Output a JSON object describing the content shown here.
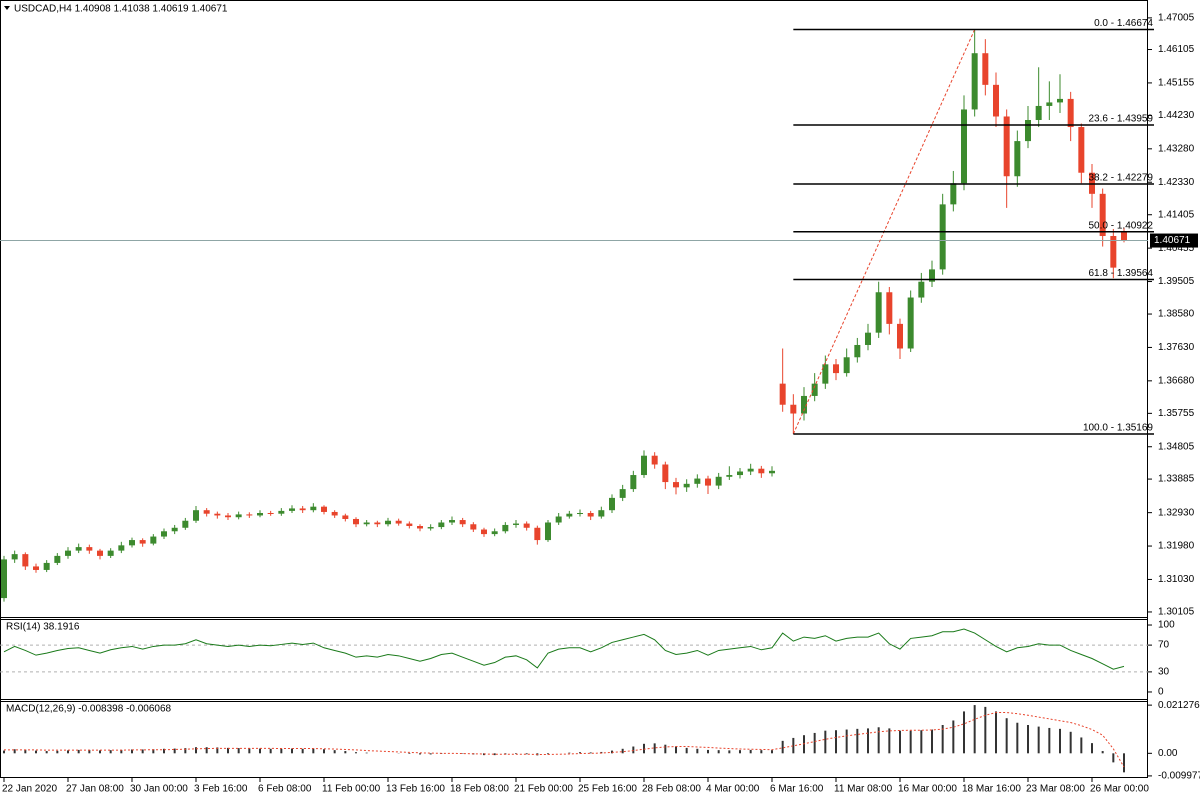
{
  "chart_data": {
    "type": "candlestick",
    "title": "USDCAD,H4  1.40908 1.41038 1.40619 1.40671",
    "bull_color": "#3c8a2e",
    "bear_color": "#e8442c",
    "categories": [
      "22 Jan 2020",
      null,
      null,
      null,
      null,
      null,
      "27 Jan 08:00",
      null,
      null,
      null,
      null,
      null,
      "30 Jan 00:00",
      null,
      null,
      null,
      null,
      null,
      "3 Feb 16:00",
      null,
      null,
      null,
      null,
      null,
      "6 Feb 08:00",
      null,
      null,
      null,
      null,
      null,
      "11 Feb 00:00",
      null,
      null,
      null,
      null,
      null,
      "13 Feb 16:00",
      null,
      null,
      null,
      null,
      null,
      "18 Feb 08:00",
      null,
      null,
      null,
      null,
      null,
      "21 Feb 00:00",
      null,
      null,
      null,
      null,
      null,
      "25 Feb 16:00",
      null,
      null,
      null,
      null,
      null,
      "28 Feb 08:00",
      null,
      null,
      null,
      null,
      null,
      "4 Mar 00:00",
      null,
      null,
      null,
      null,
      null,
      "6 Mar 16:00",
      null,
      null,
      null,
      null,
      null,
      "11 Mar 08:00",
      null,
      null,
      null,
      null,
      null,
      "16 Mar 00:00",
      null,
      null,
      null,
      null,
      null,
      "18 Mar 16:00",
      null,
      null,
      null,
      null,
      null,
      "23 Mar 08:00",
      null,
      null,
      null,
      null,
      null,
      "26 Mar 00:00",
      null,
      null,
      null
    ],
    "open": [
      1.305,
      1.316,
      1.3175,
      1.314,
      1.313,
      1.315,
      1.317,
      1.3185,
      1.3195,
      1.3185,
      1.317,
      1.3185,
      1.32,
      1.3215,
      1.3205,
      1.3225,
      1.324,
      1.325,
      1.327,
      1.33,
      1.329,
      1.3285,
      1.328,
      1.3288,
      1.3285,
      1.3292,
      1.329,
      1.3298,
      1.3305,
      1.33,
      1.331,
      1.3295,
      1.3285,
      1.3275,
      1.326,
      1.3265,
      1.326,
      1.327,
      1.3262,
      1.3255,
      1.3248,
      1.3252,
      1.3265,
      1.3272,
      1.326,
      1.3245,
      1.3232,
      1.324,
      1.3258,
      1.3262,
      1.325,
      1.3215,
      1.3265,
      1.3282,
      1.329,
      1.3292,
      1.3282,
      1.33,
      1.3335,
      1.336,
      1.34,
      1.3455,
      1.343,
      1.338,
      1.3365,
      1.3375,
      1.339,
      1.337,
      1.3395,
      1.34,
      1.341,
      1.3418,
      1.3405,
      1.366,
      1.36,
      1.3575,
      1.3625,
      1.366,
      1.3715,
      1.369,
      1.3735,
      1.377,
      1.3805,
      1.392,
      1.383,
      1.376,
      1.3905,
      1.395,
      1.3985,
      1.417,
      1.423,
      1.444,
      1.46,
      1.451,
      1.442,
      1.425,
      1.435,
      1.441,
      1.445,
      1.446,
      1.447,
      1.439,
      1.426,
      1.42,
      1.408,
      1.40908
    ],
    "high": [
      1.317,
      1.3185,
      1.318,
      1.3148,
      1.3158,
      1.3178,
      1.3195,
      1.3205,
      1.3202,
      1.319,
      1.3192,
      1.321,
      1.3222,
      1.322,
      1.3232,
      1.3248,
      1.3258,
      1.3278,
      1.3312,
      1.3306,
      1.3296,
      1.3292,
      1.3296,
      1.3294,
      1.33,
      1.3298,
      1.3306,
      1.3314,
      1.3312,
      1.332,
      1.3314,
      1.33,
      1.329,
      1.328,
      1.3272,
      1.327,
      1.3278,
      1.3276,
      1.3268,
      1.326,
      1.326,
      1.3272,
      1.3282,
      1.3278,
      1.3266,
      1.325,
      1.3248,
      1.3266,
      1.3272,
      1.3268,
      1.3256,
      1.3272,
      1.3292,
      1.3298,
      1.3302,
      1.3298,
      1.331,
      1.3345,
      1.3372,
      1.3412,
      1.347,
      1.3465,
      1.3438,
      1.3392,
      1.3388,
      1.3402,
      1.3398,
      1.3406,
      1.3425,
      1.342,
      1.3432,
      1.3426,
      1.3425,
      1.376,
      1.363,
      1.365,
      1.369,
      1.374,
      1.373,
      1.376,
      1.379,
      1.383,
      1.395,
      1.3935,
      1.3845,
      1.3925,
      1.3975,
      1.401,
      1.42,
      1.4265,
      1.448,
      1.46674,
      1.464,
      1.4545,
      1.444,
      1.438,
      1.445,
      1.456,
      1.452,
      1.454,
      1.449,
      1.44,
      1.4285,
      1.4215,
      1.41,
      1.41038
    ],
    "low": [
      1.304,
      1.315,
      1.313,
      1.3122,
      1.3124,
      1.3144,
      1.3162,
      1.3178,
      1.3176,
      1.316,
      1.3164,
      1.3178,
      1.3194,
      1.3196,
      1.32,
      1.3218,
      1.3232,
      1.3244,
      1.3264,
      1.3282,
      1.3276,
      1.3272,
      1.3274,
      1.3278,
      1.328,
      1.3284,
      1.3284,
      1.3292,
      1.3292,
      1.3294,
      1.3288,
      1.3278,
      1.3268,
      1.3252,
      1.3254,
      1.3252,
      1.3254,
      1.3256,
      1.3248,
      1.324,
      1.3242,
      1.3246,
      1.3258,
      1.3252,
      1.3238,
      1.3224,
      1.3226,
      1.3234,
      1.325,
      1.3242,
      1.3202,
      1.321,
      1.3258,
      1.3276,
      1.3282,
      1.3272,
      1.3276,
      1.3292,
      1.3326,
      1.3352,
      1.3392,
      1.3418,
      1.336,
      1.3345,
      1.3352,
      1.3364,
      1.3346,
      1.336,
      1.3386,
      1.339,
      1.34,
      1.3392,
      1.3396,
      1.358,
      1.35169,
      1.3555,
      1.361,
      1.3645,
      1.367,
      1.368,
      1.372,
      1.3755,
      1.379,
      1.38,
      1.373,
      1.375,
      1.389,
      1.3935,
      1.397,
      1.415,
      1.421,
      1.442,
      1.448,
      1.439,
      1.416,
      1.422,
      1.433,
      1.439,
      1.441,
      1.443,
      1.435,
      1.423,
      1.416,
      1.405,
      1.396,
      1.40619
    ],
    "close": [
      1.316,
      1.3175,
      1.314,
      1.313,
      1.315,
      1.317,
      1.3185,
      1.3195,
      1.3185,
      1.317,
      1.3185,
      1.32,
      1.3215,
      1.3205,
      1.3225,
      1.324,
      1.325,
      1.327,
      1.33,
      1.329,
      1.3285,
      1.328,
      1.3288,
      1.3285,
      1.3292,
      1.329,
      1.3298,
      1.3305,
      1.33,
      1.331,
      1.3295,
      1.3285,
      1.3275,
      1.326,
      1.3265,
      1.326,
      1.327,
      1.3262,
      1.3255,
      1.3248,
      1.3252,
      1.3265,
      1.3272,
      1.326,
      1.3245,
      1.3232,
      1.324,
      1.3258,
      1.3262,
      1.325,
      1.3215,
      1.3265,
      1.3282,
      1.329,
      1.3292,
      1.3282,
      1.33,
      1.3335,
      1.336,
      1.34,
      1.3455,
      1.343,
      1.338,
      1.3365,
      1.3375,
      1.339,
      1.337,
      1.3395,
      1.34,
      1.341,
      1.3418,
      1.3405,
      1.3412,
      1.36,
      1.3575,
      1.3625,
      1.366,
      1.3715,
      1.369,
      1.3735,
      1.377,
      1.3805,
      1.392,
      1.383,
      1.376,
      1.3905,
      1.395,
      1.3985,
      1.417,
      1.423,
      1.444,
      1.46,
      1.451,
      1.442,
      1.425,
      1.435,
      1.441,
      1.445,
      1.446,
      1.447,
      1.439,
      1.426,
      1.42,
      1.408,
      1.399,
      1.40671
    ],
    "ylim": [
      1.2999,
      1.474
    ],
    "yticks": [
      1.47005,
      1.46105,
      1.45155,
      {
        "value": 1.4423,
        "label": "1.44230"
      },
      {
        "value": 1.4328,
        "label": "1.43280"
      },
      {
        "value": 1.4233,
        "label": "1.42330"
      },
      1.41405,
      1.40455,
      1.39505,
      {
        "value": 1.3858,
        "label": "1.38580"
      },
      {
        "value": 1.3763,
        "label": "1.37630"
      },
      {
        "value": 1.3668,
        "label": "1.36680"
      },
      1.35755,
      1.34805,
      1.33885,
      {
        "value": 1.3293,
        "label": "1.32930"
      },
      {
        "value": 1.3198,
        "label": "1.31980"
      },
      {
        "value": 1.3103,
        "label": "1.31030"
      },
      1.30105
    ],
    "fibonacci": {
      "color": "#000000",
      "trend_color": "#e8442c",
      "levels": [
        {
          "label": "0.0 - 1.46674",
          "value": 1.46674
        },
        {
          "label": "23.6 - 1.43959",
          "value": 1.43959
        },
        {
          "label": "38.2 - 1.42279",
          "value": 1.42279
        },
        {
          "label": "50.0 - 1.40922",
          "value": 1.40922
        },
        {
          "label": "61.8 - 1.39564",
          "value": 1.39564
        },
        {
          "label": "100.0 - 1.35169",
          "value": 1.35169
        }
      ]
    },
    "rsi": {
      "label": "RSI(14) 38.1916",
      "color": "#1a7a1a",
      "values": [
        60,
        68,
        62,
        55,
        58,
        62,
        65,
        66,
        62,
        58,
        63,
        66,
        68,
        64,
        68,
        70,
        70,
        72,
        78,
        72,
        70,
        68,
        70,
        68,
        70,
        69,
        71,
        73,
        71,
        73,
        66,
        62,
        58,
        52,
        54,
        52,
        56,
        54,
        50,
        46,
        50,
        56,
        58,
        52,
        46,
        40,
        44,
        52,
        54,
        48,
        36,
        58,
        64,
        66,
        66,
        60,
        66,
        74,
        78,
        82,
        86,
        78,
        62,
        56,
        58,
        62,
        55,
        62,
        64,
        66,
        68,
        63,
        66,
        88,
        76,
        82,
        80,
        84,
        76,
        80,
        82,
        82,
        88,
        72,
        64,
        80,
        82,
        84,
        90,
        90,
        94,
        88,
        78,
        68,
        60,
        66,
        68,
        72,
        70,
        70,
        62,
        56,
        50,
        42,
        34,
        38.1916
      ],
      "ylim": [
        -10.5,
        109
      ],
      "yticks": [
        100,
        70,
        30,
        0
      ],
      "levels": [
        70,
        30
      ]
    },
    "macd": {
      "label": "MACD(12,26,9) -0.008398 -0.006068",
      "histogram_color": "#333333",
      "signal_color": "#e8442c",
      "histogram": [
        0.0012,
        0.0018,
        0.0016,
        0.0012,
        0.001,
        0.0011,
        0.0013,
        0.0015,
        0.0015,
        0.0013,
        0.0014,
        0.0015,
        0.0017,
        0.0017,
        0.0018,
        0.002,
        0.0021,
        0.0023,
        0.0027,
        0.0027,
        0.0026,
        0.0024,
        0.0023,
        0.0022,
        0.0021,
        0.002,
        0.002,
        0.0021,
        0.002,
        0.0021,
        0.0018,
        0.0014,
        0.001,
        0.0005,
        0.0003,
        0.0,
        0.0,
        -0.0001,
        -0.0003,
        -0.0005,
        -0.0005,
        -0.0003,
        0.0,
        -0.0002,
        -0.0005,
        -0.0008,
        -0.0008,
        -0.0005,
        -0.0003,
        -0.0004,
        -0.0009,
        -0.0004,
        0.0,
        0.0003,
        0.0005,
        0.0004,
        0.0006,
        0.0012,
        0.002,
        0.003,
        0.0042,
        0.0044,
        0.0038,
        0.003,
        0.0024,
        0.002,
        0.0015,
        0.0014,
        0.0013,
        0.0014,
        0.0015,
        0.0014,
        0.0014,
        0.0055,
        0.0068,
        0.008,
        0.009,
        0.01,
        0.0102,
        0.0105,
        0.0108,
        0.011,
        0.0115,
        0.011,
        0.01,
        0.01,
        0.0102,
        0.0105,
        0.0125,
        0.0145,
        0.0185,
        0.0213,
        0.0205,
        0.0185,
        0.0155,
        0.0135,
        0.0125,
        0.0118,
        0.0112,
        0.0108,
        0.0095,
        0.007,
        0.0045,
        0.001,
        -0.004,
        -0.008398
      ],
      "signal": [
        0.0015,
        0.0015,
        0.0015,
        0.0015,
        0.0014,
        0.0014,
        0.0014,
        0.0014,
        0.0014,
        0.0014,
        0.0014,
        0.0014,
        0.0015,
        0.0015,
        0.0016,
        0.0016,
        0.0017,
        0.0018,
        0.002,
        0.0021,
        0.0022,
        0.0022,
        0.0022,
        0.0022,
        0.0022,
        0.0022,
        0.0021,
        0.0021,
        0.0021,
        0.0021,
        0.002,
        0.0019,
        0.0017,
        0.0015,
        0.0012,
        0.001,
        0.0008,
        0.0006,
        0.0004,
        0.0002,
        0.0001,
        0.0,
        0.0,
        -0.0001,
        -0.0002,
        -0.0003,
        -0.0004,
        -0.0004,
        -0.0004,
        -0.0004,
        -0.0005,
        -0.0005,
        -0.0004,
        -0.0003,
        -0.0001,
        0.0,
        0.0001,
        0.0004,
        0.0007,
        0.0012,
        0.0018,
        0.0024,
        0.0028,
        0.003,
        0.003,
        0.0028,
        0.0026,
        0.0023,
        0.0021,
        0.0019,
        0.0018,
        0.0017,
        0.0016,
        0.0024,
        0.0033,
        0.0042,
        0.0052,
        0.0062,
        0.007,
        0.0077,
        0.0083,
        0.0089,
        0.0095,
        0.0099,
        0.0101,
        0.0102,
        0.0102,
        0.0103,
        0.0107,
        0.0115,
        0.013,
        0.015,
        0.0168,
        0.018,
        0.018,
        0.0175,
        0.0168,
        0.016,
        0.0152,
        0.0144,
        0.0136,
        0.0122,
        0.0105,
        0.008,
        0.002,
        -0.006068
      ],
      "ylim": [
        -0.0109,
        0.0231
      ],
      "yticks": [
        0.021276,
        {
          "value": 0,
          "label": "0.00"
        },
        -0.009977
      ]
    }
  }
}
